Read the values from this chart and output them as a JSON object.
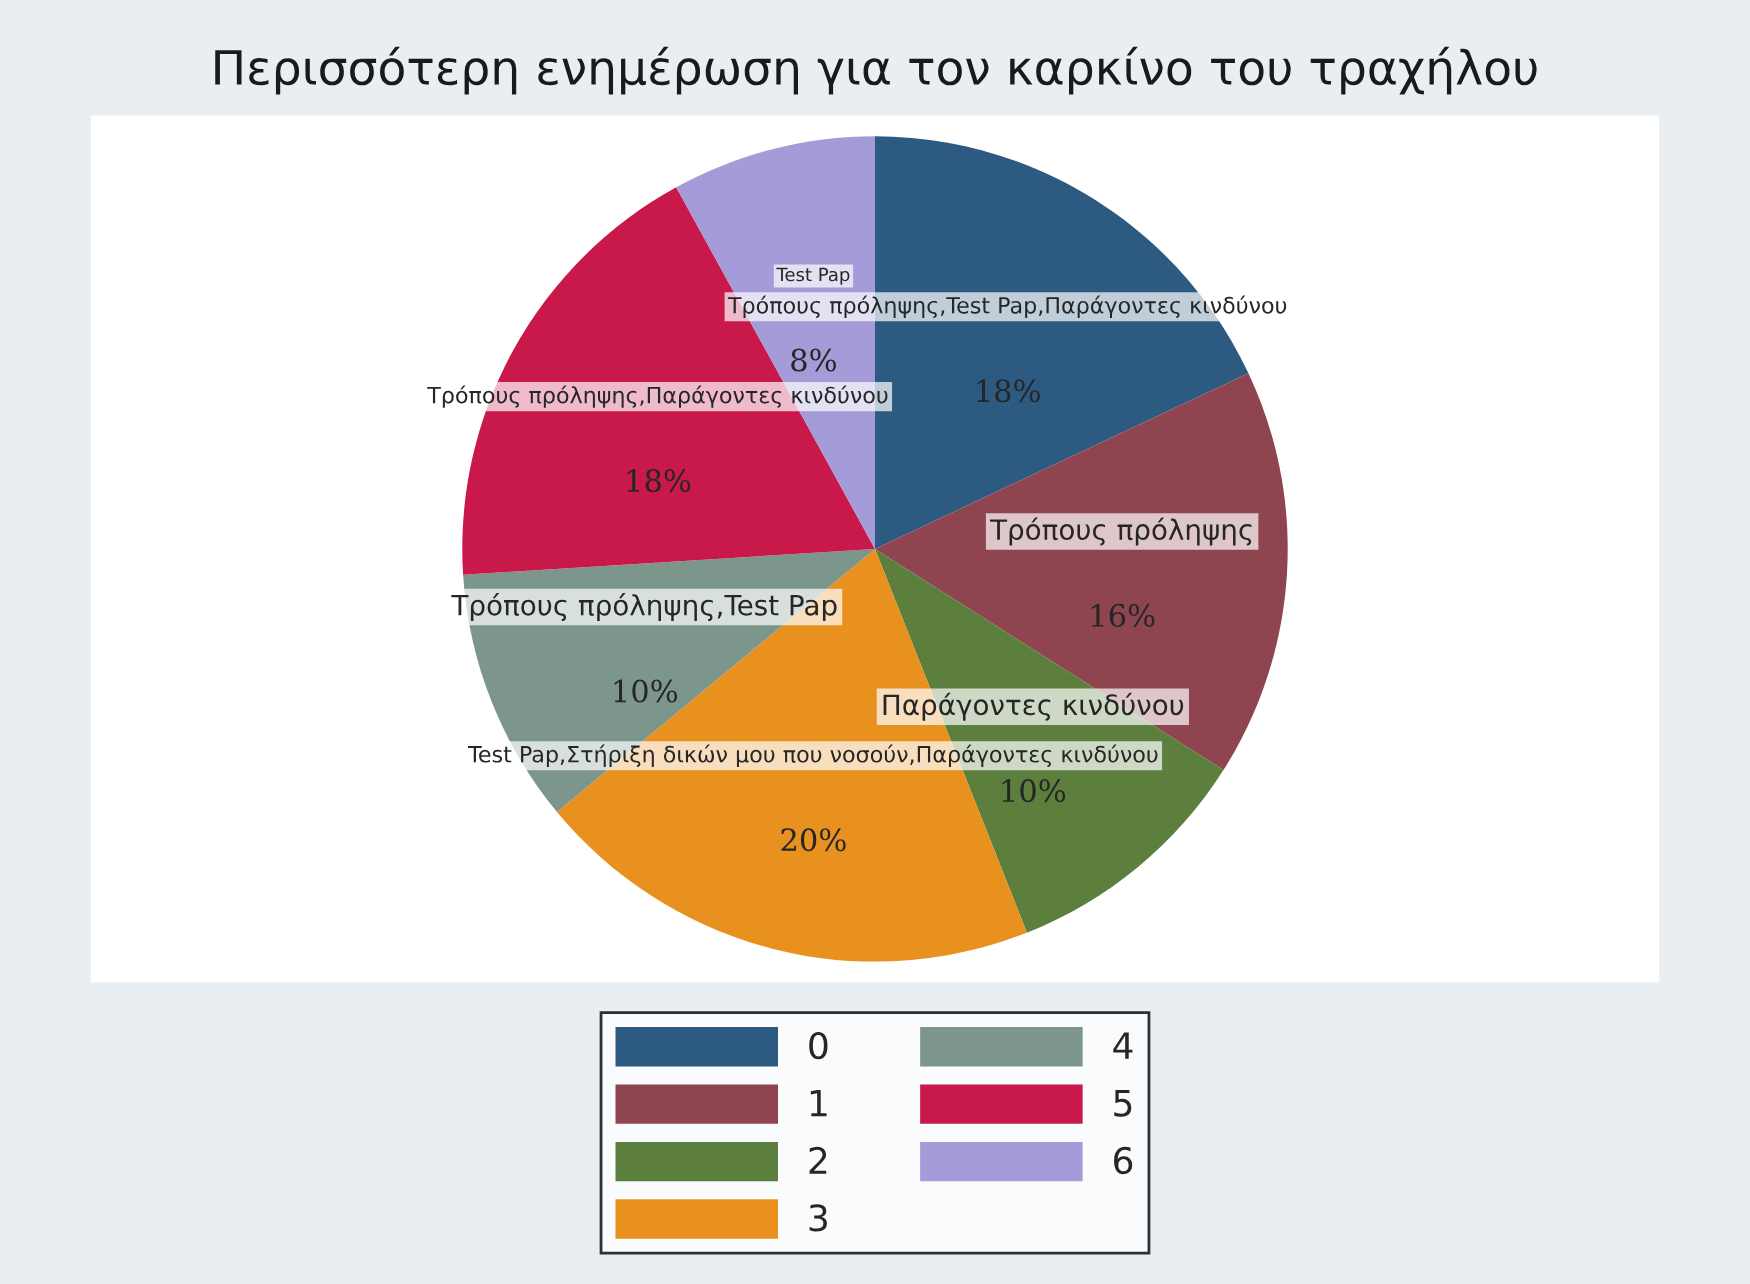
{
  "chart_data": {
    "type": "pie",
    "title": "Περισσότερη ενημέρωση για τον καρκίνο του τραχήλου",
    "categories": [
      "0",
      "1",
      "2",
      "3",
      "4",
      "5",
      "6"
    ],
    "values": [
      18,
      16,
      10,
      20,
      10,
      18,
      8
    ],
    "value_labels": [
      "18%",
      "16%",
      "10%",
      "20%",
      "10%",
      "18%",
      "8%"
    ],
    "colors": [
      "#2d5a80",
      "#8f4550",
      "#5d7f3e",
      "#e8911e",
      "#7d968b",
      "#c8194a",
      "#a49bd8"
    ],
    "annotations": [
      "Τρόπους πρόληψης,Test Pap,Παράγοντες κινδύνου",
      "Τρόπους πρόληψης",
      "Παράγοντες κινδύνου",
      "Test Pap,Στήριξη δικών μου που νοσούν,Παράγοντες κινδύνου",
      "Τρόπους πρόληψης,Test Pap",
      "Τρόπους πρόληψης,Παράγοντες κινδύνου",
      "Test Pap"
    ],
    "legend": "bottom"
  }
}
